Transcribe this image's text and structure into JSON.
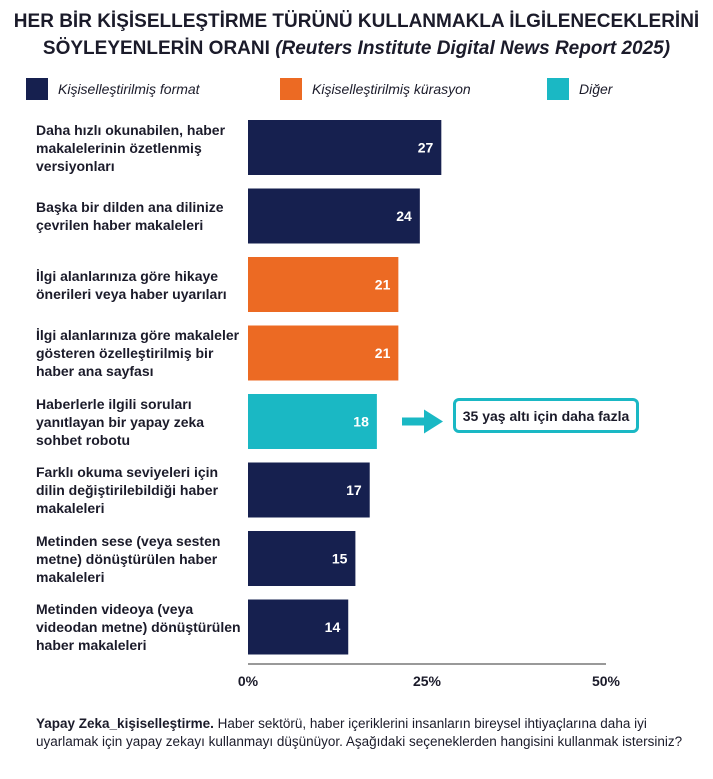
{
  "title_line1": "HER BİR KİŞİSELLEŞTİRME TÜRÜNÜ KULLANMAKLA İLGİLENECEKLERİNİ",
  "title_line2_main": "SÖYLEYENLERİN ORANI",
  "title_line2_source": "(Reuters Institute Digital News Report 2025)",
  "colors": {
    "format": "#16204f",
    "curation": "#ec6a23",
    "other": "#1ab8c4",
    "axis": "#333333",
    "text": "#1b1b2a"
  },
  "chart_data": {
    "type": "bar",
    "orientation": "horizontal",
    "title": "HER BİR KİŞİSELLEŞTİRME TÜRÜNÜ KULLANMAKLA İLGİLENECEKLERİNİ SÖYLEYENLERİN ORANI (Reuters Institute Digital News Report 2025)",
    "xlim": [
      0,
      50
    ],
    "ticks": [
      {
        "value": 0,
        "label": "0%"
      },
      {
        "value": 25,
        "label": "25%"
      },
      {
        "value": 50,
        "label": "50%"
      }
    ],
    "legend": [
      {
        "key": "format",
        "label": "Kişiselleştirilmiş format"
      },
      {
        "key": "curation",
        "label": "Kişiselleştirilmiş kürasyon"
      },
      {
        "key": "other",
        "label": "Diğer"
      }
    ],
    "categories": [
      {
        "label": "Daha hızlı okunabilen, haber makalelerinin özetlenmiş versiyonları",
        "lines": [
          "Daha hızlı okunabilen, haber",
          "makalelerinin özetlenmiş",
          "versiyonları"
        ],
        "value": 27,
        "group": "format"
      },
      {
        "label": "Başka bir dilden ana dilinize çevrilen haber makaleleri",
        "lines": [
          "Başka bir dilden ana dilinize",
          "çevrilen haber makaleleri"
        ],
        "value": 24,
        "group": "format"
      },
      {
        "label": "İlgi alanlarınıza göre hikaye önerileri veya haber uyarıları",
        "lines": [
          "İlgi alanlarınıza göre hikaye",
          "önerileri veya haber uyarıları"
        ],
        "value": 21,
        "group": "curation"
      },
      {
        "label": "İlgi alanlarınıza göre makaleler gösteren özelleştirilmiş bir haber ana sayfası",
        "lines": [
          "İlgi alanlarınıza göre makaleler",
          "gösteren özelleştirilmiş bir",
          "haber ana sayfası"
        ],
        "value": 21,
        "group": "curation"
      },
      {
        "label": "Haberlerle ilgili soruları yanıtlayan bir yapay zeka sohbet robotu",
        "lines": [
          "Haberlerle ilgili soruları",
          "yanıtlayan bir yapay zeka",
          "sohbet robotu"
        ],
        "value": 18,
        "group": "other"
      },
      {
        "label": "Farklı okuma seviyeleri için dilin değiştirilebildiği haber makaleleri",
        "lines": [
          "Farklı okuma seviyeleri için",
          "dilin değiştirilebildiği haber",
          "makaleleri"
        ],
        "value": 17,
        "group": "format"
      },
      {
        "label": "Metinden sese (veya sesten metne) dönüştürülen haber makaleleri",
        "lines": [
          "Metinden sese (veya sesten",
          "metne) dönüştürülen haber",
          "makaleleri"
        ],
        "value": 15,
        "group": "format"
      },
      {
        "label": "Metinden videoya (veya videodan metne) dönüştürülen haber makaleleri",
        "lines": [
          "Metinden videoya (veya",
          "videodan metne) dönüştürülen",
          "haber makaleleri"
        ],
        "value": 14,
        "group": "format"
      }
    ],
    "annotation": {
      "text": "35 yaş altı için daha fazla",
      "target_index": 4
    }
  },
  "footer": {
    "bold": "Yapay Zeka_kişiselleştirme.",
    "text": " Haber sektörü, haber içeriklerini insanların bireysel ihtiyaçlarına daha iyi uyarlamak için yapay zekayı kullanmayı düşünüyor. Aşağıdaki seçeneklerden hangisini kullanmak istersiniz?"
  }
}
